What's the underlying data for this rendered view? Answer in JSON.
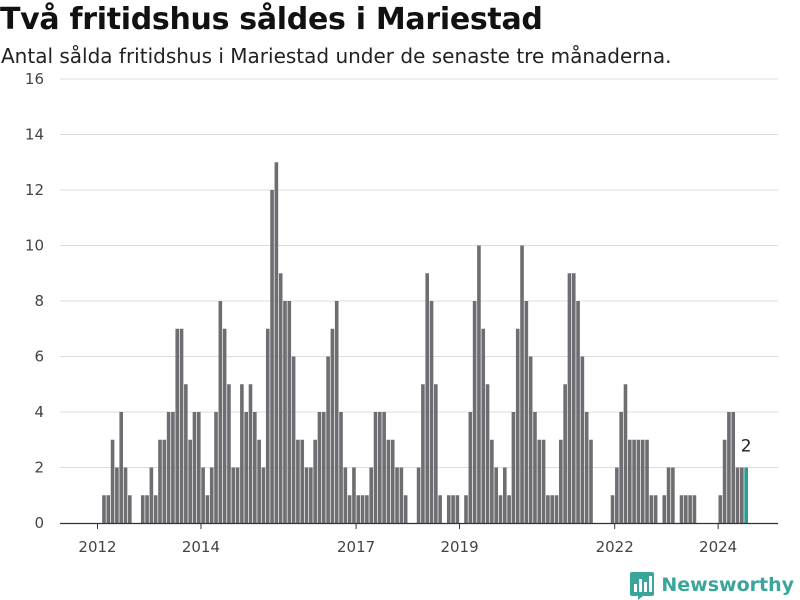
{
  "title": "Två fritidshus såldes i Mariestad",
  "subtitle": "Antal sålda fritidshus i Mariestad under de senaste tre månaderna.",
  "logo": {
    "text": "Newsworthy",
    "icon": "bar-chart-badge-icon",
    "color": "#3aa599"
  },
  "chart_data": {
    "type": "bar",
    "title": "Två fritidshus såldes i Mariestad",
    "subtitle": "Antal sålda fritidshus i Mariestad under de senaste tre månaderna.",
    "xlabel": "",
    "ylabel": "",
    "ylim": [
      0,
      16
    ],
    "yticks": [
      0,
      2,
      4,
      6,
      8,
      10,
      12,
      14,
      16
    ],
    "xticks": [
      {
        "label": "2012",
        "month_index": 0
      },
      {
        "label": "2014",
        "month_index": 24
      },
      {
        "label": "2017",
        "month_index": 60
      },
      {
        "label": "2019",
        "month_index": 84
      },
      {
        "label": "2022",
        "month_index": 120
      },
      {
        "label": "2024",
        "month_index": 144
      }
    ],
    "start_month": "2012-01",
    "bar_color": "#6e6d72",
    "highlight_color": "#2b9a8f",
    "grid": true,
    "values": [
      0,
      1,
      1,
      3,
      2,
      4,
      2,
      1,
      0,
      0,
      1,
      1,
      2,
      1,
      3,
      3,
      4,
      4,
      7,
      7,
      5,
      3,
      4,
      4,
      2,
      1,
      2,
      4,
      8,
      7,
      5,
      2,
      2,
      5,
      4,
      5,
      4,
      3,
      2,
      7,
      12,
      13,
      9,
      8,
      8,
      6,
      3,
      3,
      2,
      2,
      3,
      4,
      4,
      6,
      7,
      8,
      4,
      2,
      1,
      2,
      1,
      1,
      1,
      2,
      4,
      4,
      4,
      3,
      3,
      2,
      2,
      1,
      0,
      0,
      2,
      5,
      9,
      8,
      5,
      1,
      0,
      1,
      1,
      1,
      0,
      1,
      4,
      8,
      10,
      7,
      5,
      3,
      2,
      1,
      2,
      1,
      4,
      7,
      10,
      8,
      6,
      4,
      3,
      3,
      1,
      1,
      1,
      3,
      5,
      9,
      9,
      8,
      6,
      4,
      3,
      0,
      0,
      0,
      0,
      1,
      2,
      4,
      5,
      3,
      3,
      3,
      3,
      3,
      1,
      1,
      0,
      1,
      2,
      2,
      0,
      1,
      1,
      1,
      1,
      0,
      0,
      0,
      0,
      0,
      1,
      3,
      4,
      4,
      2,
      2,
      2
    ],
    "annotation": {
      "label": "2",
      "index": 150
    }
  }
}
